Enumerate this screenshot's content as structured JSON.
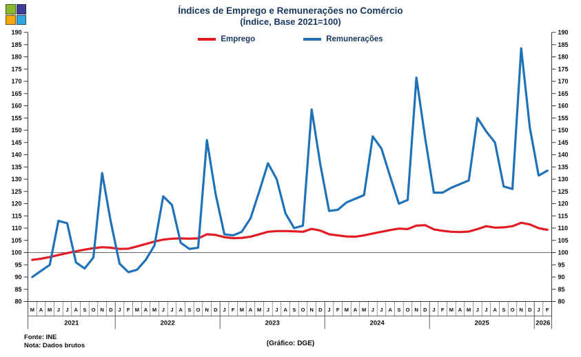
{
  "header": {
    "title_line1": "Índices de Emprego e Remunerações no Comércio",
    "title_line2": "(Índice, Base 2021=100)"
  },
  "legend": {
    "items": [
      {
        "label": "Emprego"
      },
      {
        "label": "Remunerações"
      }
    ]
  },
  "footer": {
    "source": "Fonte: INE",
    "note": "Nota: Dados brutos",
    "credit": "(Gráfico: DGE)"
  },
  "logo": {
    "squares": [
      {
        "name": "logo-square-top-left",
        "color": "#8cb92c"
      },
      {
        "name": "logo-square-top-right",
        "color": "#3f3d94"
      },
      {
        "name": "logo-square-bottom-left",
        "color": "#f7a70a"
      },
      {
        "name": "logo-square-bottom-right",
        "color": "#31a8e0"
      }
    ]
  },
  "chart_data": {
    "type": "line",
    "title": "Índices de Emprego e Remunerações no Comércio",
    "subtitle": "(Índice, Base 2021=100)",
    "x_unit": "month",
    "x_start": "2021-03",
    "x_end": "2026-02",
    "ylim": [
      80,
      190
    ],
    "ytick_step": 5,
    "baseline": 100,
    "grid": false,
    "legend_position": "top-center",
    "dual_y_axis": true,
    "month_letters": [
      "M",
      "A",
      "M",
      "J",
      "J",
      "A",
      "S",
      "O",
      "N",
      "D",
      "J",
      "F",
      "M",
      "A",
      "M",
      "J",
      "J",
      "A",
      "S",
      "O",
      "N",
      "D",
      "J",
      "F",
      "M",
      "A",
      "M",
      "J",
      "J",
      "A",
      "S",
      "O",
      "N",
      "D",
      "J",
      "F",
      "M",
      "A",
      "M",
      "J",
      "J",
      "A",
      "S",
      "O",
      "N",
      "D",
      "J",
      "F",
      "M",
      "A",
      "M",
      "J",
      "J",
      "A",
      "S",
      "O",
      "N",
      "D",
      "J",
      "F"
    ],
    "year_groups": [
      {
        "label": "2021",
        "months": 10
      },
      {
        "label": "2022",
        "months": 12
      },
      {
        "label": "2023",
        "months": 12
      },
      {
        "label": "2024",
        "months": 12
      },
      {
        "label": "2025",
        "months": 12
      },
      {
        "label": "2026",
        "months": 2
      }
    ],
    "series": [
      {
        "id": "emprego",
        "name": "Emprego",
        "color": "#e41b23",
        "values": [
          97,
          97.5,
          98.2,
          99,
          99.8,
          100.5,
          101.2,
          101.8,
          102.2,
          102,
          101.5,
          101.6,
          102.5,
          103.5,
          104.5,
          105.3,
          105.7,
          105.8,
          105.7,
          105.8,
          107.5,
          107.2,
          106.3,
          105.9,
          106,
          106.5,
          107.5,
          108.5,
          108.8,
          108.8,
          108.7,
          108.5,
          109.7,
          109,
          107.5,
          107,
          106.6,
          106.5,
          107,
          107.8,
          108.5,
          109.2,
          109.8,
          109.6,
          111,
          111.2,
          109.5,
          108.9,
          108.5,
          108.4,
          108.6,
          109.6,
          110.8,
          110.2,
          110.3,
          110.8,
          112.2,
          111.5,
          110,
          109.3
        ]
      },
      {
        "id": "remuneracoes",
        "name": "Remunerações",
        "color": "#1f72b8",
        "values": [
          90,
          92.5,
          95,
          113,
          112,
          96,
          93.5,
          98,
          132.5,
          112.5,
          95.5,
          92,
          93,
          97,
          103,
          123,
          119.5,
          104,
          101.5,
          102,
          146,
          124,
          107.5,
          107,
          108.5,
          114,
          125,
          136.5,
          130,
          116,
          110,
          111,
          158.5,
          136,
          117,
          117.5,
          120.5,
          122,
          123.5,
          147.5,
          142.5,
          131,
          120,
          121.5,
          171.5,
          147,
          124.5,
          124.5,
          126.5,
          128,
          129.5,
          155,
          149.5,
          145,
          127,
          126,
          183.5,
          151,
          131.5,
          133.5
        ]
      }
    ]
  }
}
